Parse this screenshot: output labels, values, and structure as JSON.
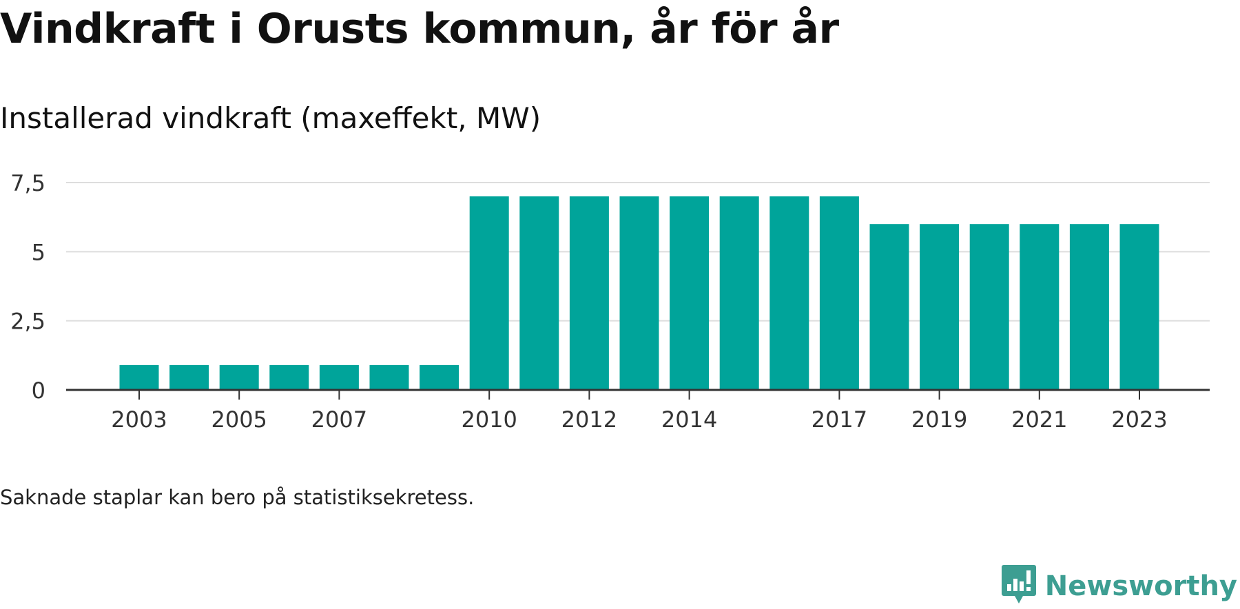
{
  "title": "Vindkraft i Orusts kommun, år för år",
  "subtitle": "Installerad vindkraft (maxeffekt, MW)",
  "note": "Saknade staplar kan bero på statistiksekretess.",
  "brand": {
    "name": "Newsworthy",
    "icon": "newsworthy-logo-icon"
  },
  "colors": {
    "bar": "#00a49a",
    "grid": "#dddddd",
    "axis": "#333333",
    "text": "#333333",
    "brand": "#3d9e92"
  },
  "chart_data": {
    "type": "bar",
    "title": "Vindkraft i Orusts kommun, år för år",
    "subtitle": "Installerad vindkraft (maxeffekt, MW)",
    "xlabel": "",
    "ylabel": "",
    "categories": [
      "2003",
      "2004",
      "2005",
      "2006",
      "2007",
      "2008",
      "2009",
      "2010",
      "2011",
      "2012",
      "2013",
      "2014",
      "2015",
      "2016",
      "2017",
      "2018",
      "2019",
      "2020",
      "2021",
      "2022",
      "2023"
    ],
    "values": [
      0.9,
      0.9,
      0.9,
      0.9,
      0.9,
      0.9,
      0.9,
      7,
      7,
      7,
      7,
      7,
      7,
      7,
      7,
      6,
      6,
      6,
      6,
      6,
      6
    ],
    "x_tick_labels": [
      "2003",
      "2005",
      "2007",
      "2010",
      "2012",
      "2014",
      "2017",
      "2019",
      "2021",
      "2023"
    ],
    "y_ticks": [
      0,
      2.5,
      5,
      7.5
    ],
    "y_tick_labels": [
      "0",
      "2,5",
      "5",
      "7,5"
    ],
    "ylim": [
      0,
      7.5
    ],
    "grid": true,
    "legend": "none"
  }
}
